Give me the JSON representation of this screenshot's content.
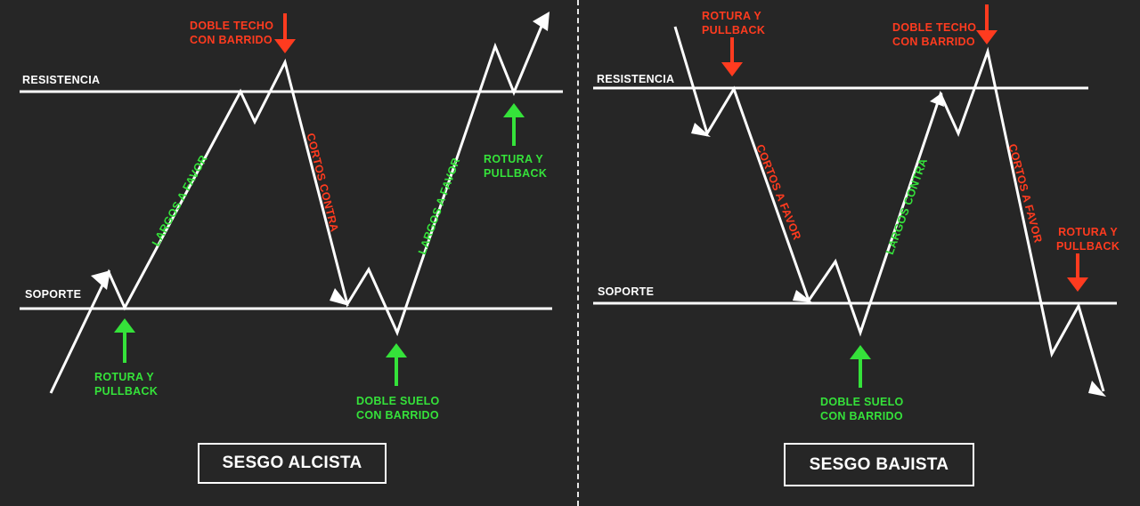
{
  "left": {
    "resistance_label": "RESISTENCIA",
    "support_label": "SOPORTE",
    "top_note": "DOBLE TECHO\nCON BARRIDO",
    "leg1_label": "LARGOS A FAVOR",
    "leg2_label": "CORTOS CONTRA",
    "leg3_label": "LARGOS A FAVOR",
    "bottom_left_note": "ROTURA Y\nPULLBACK",
    "bottom_mid_note": "DOBLE SUELO\nCON BARRIDO",
    "right_note": "ROTURA Y\nPULLBACK",
    "bias": "SESGO ALCISTA"
  },
  "right": {
    "resistance_label": "RESISTENCIA",
    "support_label": "SOPORTE",
    "top_left_note": "ROTURA Y\nPULLBACK",
    "top_mid_note": "DOBLE TECHO\nCON BARRIDO",
    "leg1_label": "CORTOS A FAVOR",
    "leg2_label": "LARGOS CONTRA",
    "leg3_label": "CORTOS A FAVOR",
    "bottom_note": "DOBLE SUELO\nCON BARRIDO",
    "right_note": "ROTURA Y\nPULLBACK",
    "bias": "SESGO BAJISTA"
  },
  "colors": {
    "background": "#262626",
    "line": "#ffffff",
    "green": "#35e23a",
    "red": "#ff3b1f"
  },
  "icons": [
    "arrow-up-icon",
    "arrow-down-icon"
  ]
}
